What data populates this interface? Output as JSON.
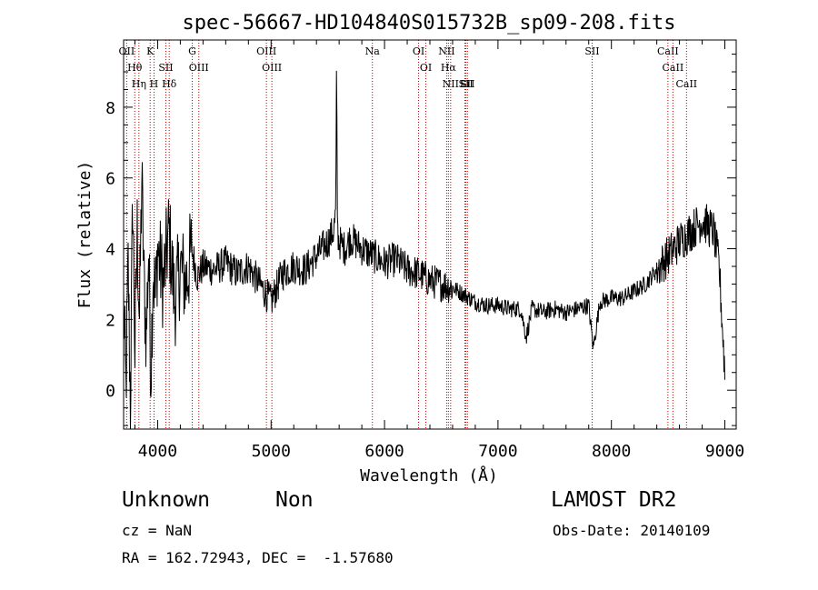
{
  "chart_data": {
    "type": "line",
    "title": "spec-56667-HD104840S015732B_sp09-208.fits",
    "xlabel": "Wavelength (Å)",
    "ylabel": "Flux (relative)",
    "xlim": [
      3700,
      9100
    ],
    "ylim": [
      -1.1,
      9.9
    ],
    "x_ticks": [
      4000,
      5000,
      6000,
      7000,
      8000,
      9000
    ],
    "y_ticks": [
      0,
      2,
      4,
      6,
      8
    ],
    "grid": false,
    "line_color": "#000000",
    "marker_color": "#c00000",
    "spectral_lines": [
      {
        "label": "OII",
        "x": 3727
      },
      {
        "label": "Hθ",
        "x": 3798
      },
      {
        "label": "Hη",
        "x": 3835
      },
      {
        "label": "K",
        "x": 3934
      },
      {
        "label": "H",
        "x": 3968
      },
      {
        "label": "SII",
        "x": 4072
      },
      {
        "label": "Hδ",
        "x": 4102
      },
      {
        "label": "G",
        "x": 4305
      },
      {
        "label": "OIII",
        "x": 4363
      },
      {
        "label": "OIII",
        "x": 4959
      },
      {
        "label": "OIII",
        "x": 5007
      },
      {
        "label": "Na",
        "x": 5893
      },
      {
        "label": "OI",
        "x": 6300
      },
      {
        "label": "OI",
        "x": 6364
      },
      {
        "label": "NII",
        "x": 6548
      },
      {
        "label": "Hα",
        "x": 6563
      },
      {
        "label": "NII",
        "x": 6583
      },
      {
        "label": "Li",
        "x": 6708
      },
      {
        "label": "SII",
        "x": 6717
      },
      {
        "label": "SII",
        "x": 6731
      },
      {
        "label": "SII",
        "x": 7830
      },
      {
        "label": "CaII",
        "x": 8498
      },
      {
        "label": "CaII",
        "x": 8542
      },
      {
        "label": "CaII",
        "x": 8662
      }
    ],
    "series": [
      {
        "x": [
          3700,
          3720,
          3740,
          3760,
          3780,
          3800,
          3820,
          3840,
          3860,
          3880,
          3900,
          3920,
          3940,
          3960,
          3980,
          4000,
          4050,
          4100,
          4150,
          4200,
          4250,
          4300,
          4350,
          4400,
          4500,
          4600,
          4700,
          4800,
          4900,
          5000,
          5100,
          5200,
          5300,
          5400,
          5500,
          5550,
          5570,
          5577,
          5585,
          5600,
          5650,
          5700,
          5800,
          5900,
          6000,
          6100,
          6200,
          6300,
          6400,
          6500,
          6600,
          6700,
          6800,
          6900,
          7000,
          7100,
          7200,
          7250,
          7300,
          7400,
          7500,
          7600,
          7700,
          7800,
          7840,
          7900,
          8000,
          8100,
          8200,
          8300,
          8400,
          8500,
          8600,
          8700,
          8800,
          8900,
          8950,
          9000
        ],
        "y": [
          2.5,
          0.0,
          3.5,
          -0.5,
          5.5,
          1.0,
          4.5,
          2.0,
          6.0,
          3.0,
          1.5,
          4.0,
          0.5,
          3.5,
          2.5,
          4.0,
          3.0,
          4.5,
          2.5,
          3.5,
          3.0,
          4.0,
          3.2,
          3.5,
          3.4,
          3.6,
          3.3,
          3.5,
          3.0,
          2.5,
          3.3,
          3.5,
          3.4,
          3.8,
          4.2,
          4.5,
          5.0,
          9.2,
          4.5,
          4.2,
          4.0,
          4.3,
          4.0,
          3.8,
          3.6,
          3.7,
          3.4,
          3.3,
          3.1,
          3.0,
          2.9,
          2.7,
          2.5,
          2.4,
          2.4,
          2.3,
          2.3,
          1.5,
          2.3,
          2.2,
          2.3,
          2.2,
          2.3,
          2.4,
          1.2,
          2.5,
          2.6,
          2.6,
          2.8,
          3.0,
          3.4,
          3.8,
          4.2,
          4.5,
          4.8,
          4.5,
          3.5,
          0.5
        ]
      }
    ]
  },
  "info": {
    "object_class": "Unknown",
    "object_subclass": "Non",
    "survey": "LAMOST DR2",
    "cz": "cz = NaN",
    "obs_date": "Obs-Date: 20140109",
    "coords": "RA = 162.72943, DEC =  -1.57680"
  }
}
